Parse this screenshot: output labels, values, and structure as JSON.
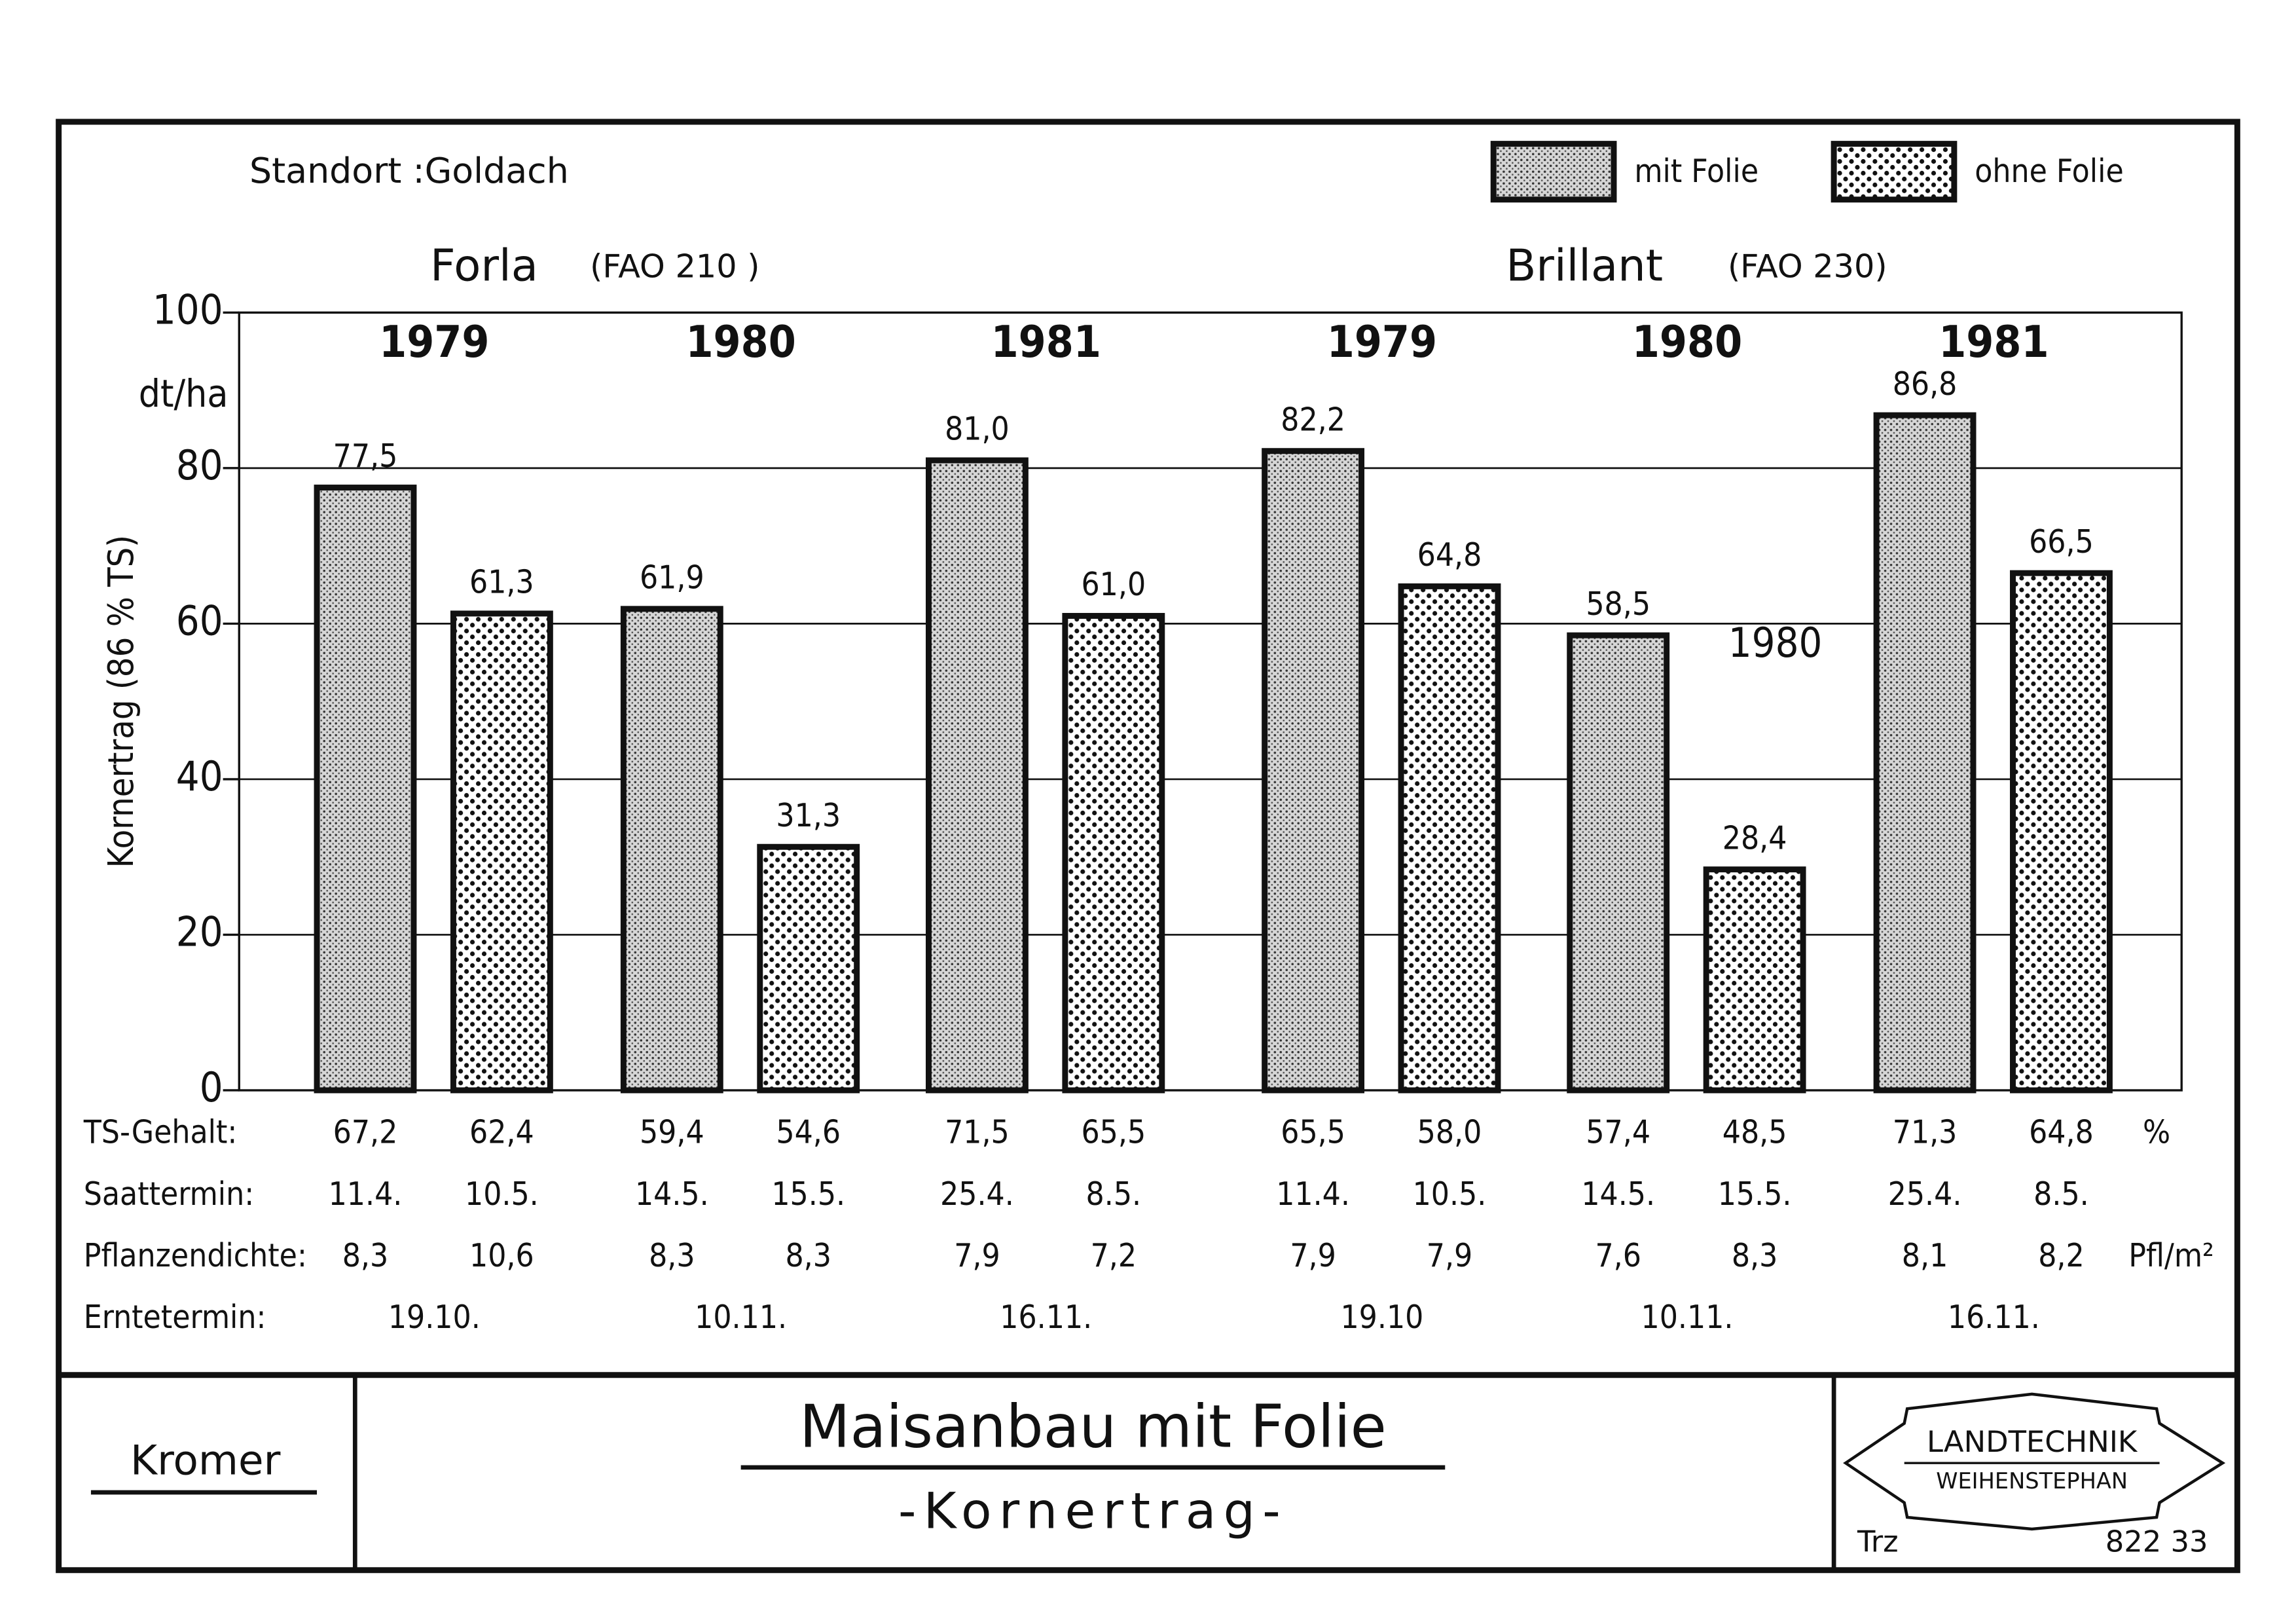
{
  "chart_data": {
    "type": "bar",
    "subtitle": "Standort :Goldach",
    "y_label": "Kornertrag (86 % TS)",
    "y_unit": "dt/ha",
    "groups": [
      {
        "name": "Forla",
        "note": "(FAO 210 )"
      },
      {
        "name": "Brillant",
        "note": "(FAO 230)"
      }
    ],
    "categories": [
      "1979",
      "1980",
      "1981",
      "1979",
      "1980",
      "1981"
    ],
    "series": [
      {
        "name": "mit Folie",
        "color": "#9a9a9a",
        "values": [
          77.5,
          61.9,
          81.0,
          82.2,
          58.5,
          86.8
        ],
        "value_labels": [
          "77,5",
          "61,9",
          "81,0",
          "82,2",
          "58,5",
          "86,8"
        ]
      },
      {
        "name": "ohne Folie",
        "color": "#ffffff",
        "values": [
          61.3,
          31.3,
          61.0,
          64.8,
          28.4,
          66.5
        ],
        "value_labels": [
          "61,3",
          "31,3",
          "61,0",
          "64,8",
          "28,4",
          "66,5"
        ]
      }
    ],
    "annotation": "1980",
    "ylim": [
      0,
      100
    ],
    "yticks": [
      0,
      20,
      40,
      60,
      80,
      100
    ],
    "grid": true,
    "legend": "top-right"
  },
  "table": {
    "rows": [
      {
        "label": "TS-Gehalt:",
        "values": [
          "67,2",
          "62,4",
          "59,4",
          "54,6",
          "71,5",
          "65,5",
          "65,5",
          "58,0",
          "57,4",
          "48,5",
          "71,3",
          "64,8"
        ],
        "unit": "%"
      },
      {
        "label": "Saattermin:",
        "values": [
          "11.4.",
          "10.5.",
          "14.5.",
          "15.5.",
          "25.4.",
          "8.5.",
          "11.4.",
          "10.5.",
          "14.5.",
          "15.5.",
          "25.4.",
          "8.5."
        ]
      },
      {
        "label": "Pflanzendichte:",
        "values": [
          "8,3",
          "10,6",
          "8,3",
          "8,3",
          "7,9",
          "7,2",
          "7,9",
          "7,9",
          "7,6",
          "8,3",
          "8,1",
          "8,2"
        ],
        "unit": "Pfl/m²"
      }
    ],
    "harvest": {
      "label": "Erntetermin:",
      "values": [
        "19.10.",
        "10.11.",
        "16.11.",
        "19.10",
        "10.11.",
        "16.11."
      ]
    }
  },
  "footer": {
    "author": "Kromer",
    "title": "Maisanbau mit Folie",
    "subtitle": "-Kornertrag-",
    "logo_top": "LANDTECHNIK",
    "logo_bottom": "WEIHENSTEPHAN",
    "initials": "Trz",
    "number": "822 33"
  }
}
